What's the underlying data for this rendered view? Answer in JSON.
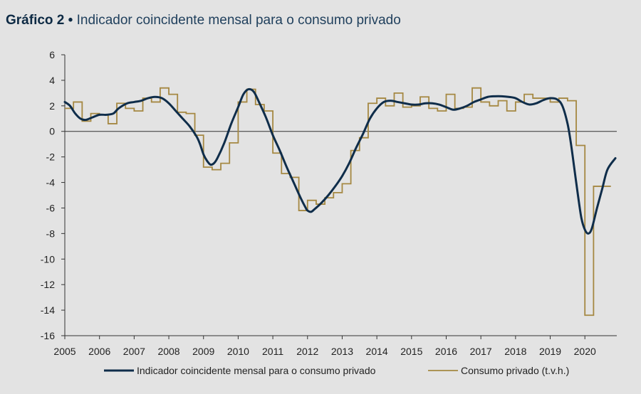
{
  "title": {
    "label": "Gráfico 2",
    "separator": "•",
    "text": "Indicador coincidente mensal para o consumo privado"
  },
  "colors": {
    "indicator": "#0f2d4a",
    "consumption": "#a58842",
    "axis": "#333333",
    "background": "#e3e3e3"
  },
  "chart_data": {
    "type": "line",
    "xlim": [
      2005,
      2020.92
    ],
    "ylim": [
      -16,
      6
    ],
    "x_ticks": [
      "2005",
      "2006",
      "2007",
      "2008",
      "2009",
      "2010",
      "2011",
      "2012",
      "2013",
      "2014",
      "2015",
      "2016",
      "2017",
      "2018",
      "2019",
      "2020"
    ],
    "y_ticks": [
      "6",
      "4",
      "2",
      "0",
      "-2",
      "-4",
      "-6",
      "-8",
      "-10",
      "-12",
      "-14",
      "-16"
    ],
    "legend_position": "bottom",
    "series": [
      {
        "name": "Indicador coincidente mensal para o consumo privado",
        "style": "smooth",
        "points": [
          [
            2005.0,
            2.3
          ],
          [
            2005.15,
            2.0
          ],
          [
            2005.3,
            1.4
          ],
          [
            2005.45,
            1.0
          ],
          [
            2005.6,
            0.9
          ],
          [
            2005.8,
            1.1
          ],
          [
            2006.0,
            1.3
          ],
          [
            2006.2,
            1.3
          ],
          [
            2006.4,
            1.4
          ],
          [
            2006.55,
            1.8
          ],
          [
            2006.8,
            2.2
          ],
          [
            2007.0,
            2.3
          ],
          [
            2007.2,
            2.4
          ],
          [
            2007.4,
            2.6
          ],
          [
            2007.6,
            2.7
          ],
          [
            2007.8,
            2.6
          ],
          [
            2008.0,
            2.2
          ],
          [
            2008.2,
            1.6
          ],
          [
            2008.4,
            1.0
          ],
          [
            2008.6,
            0.4
          ],
          [
            2008.8,
            -0.4
          ],
          [
            2008.9,
            -1.0
          ],
          [
            2009.0,
            -1.8
          ],
          [
            2009.1,
            -2.3
          ],
          [
            2009.2,
            -2.6
          ],
          [
            2009.3,
            -2.5
          ],
          [
            2009.4,
            -2.1
          ],
          [
            2009.6,
            -0.9
          ],
          [
            2009.8,
            0.6
          ],
          [
            2010.0,
            1.9
          ],
          [
            2010.15,
            2.9
          ],
          [
            2010.3,
            3.3
          ],
          [
            2010.45,
            3.1
          ],
          [
            2010.6,
            2.3
          ],
          [
            2010.8,
            1.1
          ],
          [
            2011.0,
            -0.3
          ],
          [
            2011.2,
            -1.5
          ],
          [
            2011.4,
            -2.8
          ],
          [
            2011.6,
            -4.0
          ],
          [
            2011.8,
            -5.2
          ],
          [
            2011.95,
            -6.0
          ],
          [
            2012.0,
            -6.2
          ],
          [
            2012.1,
            -6.3
          ],
          [
            2012.2,
            -6.1
          ],
          [
            2012.4,
            -5.6
          ],
          [
            2012.6,
            -5.0
          ],
          [
            2012.8,
            -4.3
          ],
          [
            2013.0,
            -3.5
          ],
          [
            2013.2,
            -2.5
          ],
          [
            2013.4,
            -1.3
          ],
          [
            2013.6,
            -0.2
          ],
          [
            2013.8,
            1.0
          ],
          [
            2014.0,
            1.8
          ],
          [
            2014.2,
            2.3
          ],
          [
            2014.4,
            2.4
          ],
          [
            2014.6,
            2.3
          ],
          [
            2014.8,
            2.2
          ],
          [
            2015.0,
            2.1
          ],
          [
            2015.2,
            2.1
          ],
          [
            2015.4,
            2.2
          ],
          [
            2015.6,
            2.2
          ],
          [
            2015.8,
            2.1
          ],
          [
            2016.0,
            1.9
          ],
          [
            2016.2,
            1.7
          ],
          [
            2016.4,
            1.8
          ],
          [
            2016.6,
            2.0
          ],
          [
            2016.8,
            2.3
          ],
          [
            2017.0,
            2.5
          ],
          [
            2017.2,
            2.7
          ],
          [
            2017.4,
            2.75
          ],
          [
            2017.6,
            2.75
          ],
          [
            2017.8,
            2.7
          ],
          [
            2018.0,
            2.6
          ],
          [
            2018.2,
            2.3
          ],
          [
            2018.4,
            2.1
          ],
          [
            2018.6,
            2.2
          ],
          [
            2018.8,
            2.45
          ],
          [
            2019.0,
            2.6
          ],
          [
            2019.2,
            2.5
          ],
          [
            2019.35,
            2.0
          ],
          [
            2019.5,
            0.6
          ],
          [
            2019.6,
            -1.0
          ],
          [
            2019.7,
            -3.0
          ],
          [
            2019.8,
            -5.0
          ],
          [
            2019.9,
            -6.8
          ],
          [
            2020.0,
            -7.7
          ],
          [
            2020.1,
            -8.0
          ],
          [
            2020.2,
            -7.6
          ],
          [
            2020.35,
            -6.0
          ],
          [
            2020.5,
            -4.5
          ],
          [
            2020.65,
            -3.0
          ],
          [
            2020.88,
            -2.1
          ]
        ]
      },
      {
        "name": "Consumo privado (t.v.h.)",
        "style": "step",
        "points": [
          [
            2005.0,
            1.8
          ],
          [
            2005.25,
            2.3
          ],
          [
            2005.5,
            0.8
          ],
          [
            2005.75,
            1.4
          ],
          [
            2006.0,
            1.3
          ],
          [
            2006.25,
            0.6
          ],
          [
            2006.5,
            2.2
          ],
          [
            2006.75,
            1.8
          ],
          [
            2007.0,
            1.6
          ],
          [
            2007.25,
            2.6
          ],
          [
            2007.5,
            2.3
          ],
          [
            2007.75,
            3.4
          ],
          [
            2008.0,
            2.9
          ],
          [
            2008.25,
            1.5
          ],
          [
            2008.5,
            1.4
          ],
          [
            2008.75,
            -0.3
          ],
          [
            2009.0,
            -2.8
          ],
          [
            2009.25,
            -3.0
          ],
          [
            2009.5,
            -2.5
          ],
          [
            2009.75,
            -0.9
          ],
          [
            2010.0,
            2.3
          ],
          [
            2010.25,
            3.3
          ],
          [
            2010.5,
            2.1
          ],
          [
            2010.75,
            1.6
          ],
          [
            2011.0,
            -1.7
          ],
          [
            2011.25,
            -3.3
          ],
          [
            2011.5,
            -3.6
          ],
          [
            2011.75,
            -6.2
          ],
          [
            2012.0,
            -5.4
          ],
          [
            2012.25,
            -5.7
          ],
          [
            2012.5,
            -5.2
          ],
          [
            2012.75,
            -4.8
          ],
          [
            2013.0,
            -4.1
          ],
          [
            2013.25,
            -1.5
          ],
          [
            2013.5,
            -0.5
          ],
          [
            2013.75,
            2.2
          ],
          [
            2014.0,
            2.6
          ],
          [
            2014.25,
            2.0
          ],
          [
            2014.5,
            3.0
          ],
          [
            2014.75,
            1.9
          ],
          [
            2015.0,
            2.0
          ],
          [
            2015.25,
            2.7
          ],
          [
            2015.5,
            1.8
          ],
          [
            2015.75,
            1.6
          ],
          [
            2016.0,
            2.9
          ],
          [
            2016.25,
            1.8
          ],
          [
            2016.5,
            1.9
          ],
          [
            2016.75,
            3.4
          ],
          [
            2017.0,
            2.3
          ],
          [
            2017.25,
            2.0
          ],
          [
            2017.5,
            2.4
          ],
          [
            2017.75,
            1.6
          ],
          [
            2018.0,
            2.3
          ],
          [
            2018.25,
            2.9
          ],
          [
            2018.5,
            2.6
          ],
          [
            2018.75,
            2.6
          ],
          [
            2019.0,
            2.3
          ],
          [
            2019.25,
            2.6
          ],
          [
            2019.5,
            2.4
          ],
          [
            2019.75,
            -1.1
          ],
          [
            2020.0,
            -14.4
          ],
          [
            2020.25,
            -4.3
          ],
          [
            2020.5,
            -4.3
          ]
        ]
      }
    ]
  }
}
